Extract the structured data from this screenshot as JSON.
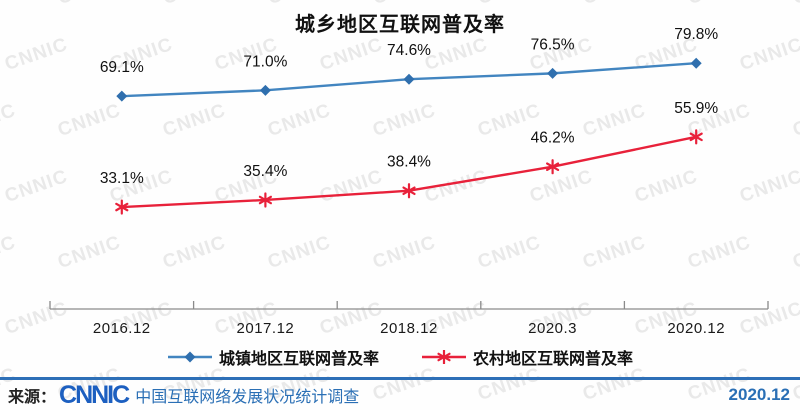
{
  "watermark": {
    "text": "CNNIC"
  },
  "chart_data": {
    "type": "line",
    "title": "城乡地区互联网普及率",
    "categories": [
      "2016.12",
      "2017.12",
      "2018.12",
      "2020.3",
      "2020.12"
    ],
    "series": [
      {
        "name": "城镇地区互联网普及率",
        "values": [
          69.1,
          71.0,
          74.6,
          76.5,
          79.8
        ],
        "labels": [
          "69.1%",
          "71.0%",
          "74.6%",
          "76.5%",
          "79.8%"
        ],
        "color": "#4285c0",
        "marker": "diamond",
        "marker_color": "#2f6fae"
      },
      {
        "name": "农村地区互联网普及率",
        "values": [
          33.1,
          35.4,
          38.4,
          46.2,
          55.9
        ],
        "labels": [
          "33.1%",
          "35.4%",
          "38.4%",
          "46.2%",
          "55.9%"
        ],
        "color": "#e8213a",
        "marker": "asterisk",
        "marker_color": "#e8213a"
      }
    ],
    "xlabel": "",
    "ylabel": "",
    "ylim": [
      0,
      100
    ],
    "grid": false,
    "legend_position": "bottom",
    "data_labels": true
  },
  "colors": {
    "axis": "#8a8a8a",
    "urban_line": "#4285c0",
    "rural_line": "#e8213a",
    "footer_blue": "#2d6fb7",
    "logo_blue": "#1c5fc0",
    "watermark_gray": "#e2e2e2"
  },
  "footer": {
    "source_label": "来源：",
    "logo": "CNNIC",
    "survey": "中国互联网络发展状况统计调查",
    "date": "2020.12"
  }
}
